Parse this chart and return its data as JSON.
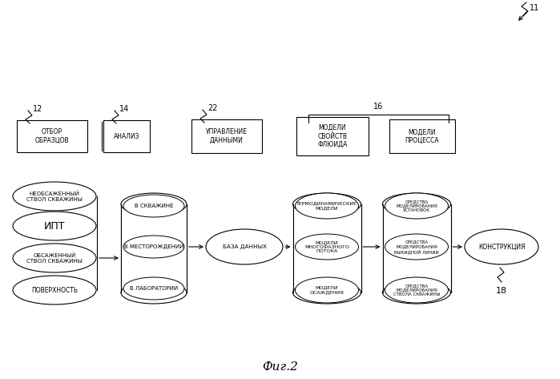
{
  "title": "Фиг.2",
  "bg_color": "#ffffff",
  "label_11": "11",
  "label_12": "12",
  "label_14": "14",
  "label_22": "22",
  "label_16": "16",
  "label_18": "18",
  "box_otbor": "ОТБОР\nОБРАЗЦОВ",
  "box_analiz": "АНАЛИЗ",
  "box_upravlenie": "УПРАВЛЕНИЕ\nДАННЫМИ",
  "box_modeli_svoystv": "МОДЕЛИ\nСВОЙСТВ\nФЛЮИДА",
  "box_modeli_processa": "МОДЕЛИ\nПРОЦЕССА",
  "ellipse_neobsazh": "НЕОБСАЖЕННЫЙ\nСТВОЛ СКВАЖИНЫ",
  "ellipse_ipt": "ИПТ",
  "ellipse_obsazh": "ОБСАЖЕННЫЙ\nСТВОЛ СКВАЖИНЫ",
  "ellipse_poverh": "ПОВЕРХНОСТЬ",
  "cyl1_labels": [
    "В СКВАЖИНЕ",
    "В МЕСТОРОЖДЕНИИ",
    "В ЛАБОРАТОРИИ"
  ],
  "ellipse_baza": "БАЗА ДАННЫХ",
  "cyl2_labels": [
    "ТЕРМОДИНАМИЧЕСКИЕ\nМОДЕЛИ",
    "МОДЕЛИ\nМНОГОФАЗНОГО\nПОТОКА",
    "МОДЕЛИ\nОСАЖДЕНИЯ"
  ],
  "cyl3_labels": [
    "СРЕДСТВА\nМОДЕЛИРОВАНИЯ\nУСТАНОВОК",
    "СРЕДСТВА\nМОДЕЛИРОВАНИЯ\nВЫКИДНОЙ ЛИНИИ",
    "СРЕДСТВА\nМОДЕЛИРОВАНИЯ\nСТВОЛА СКВАЖИНЫ"
  ],
  "ellipse_konstrukcia": "КОНСТРУКЦИЯ"
}
